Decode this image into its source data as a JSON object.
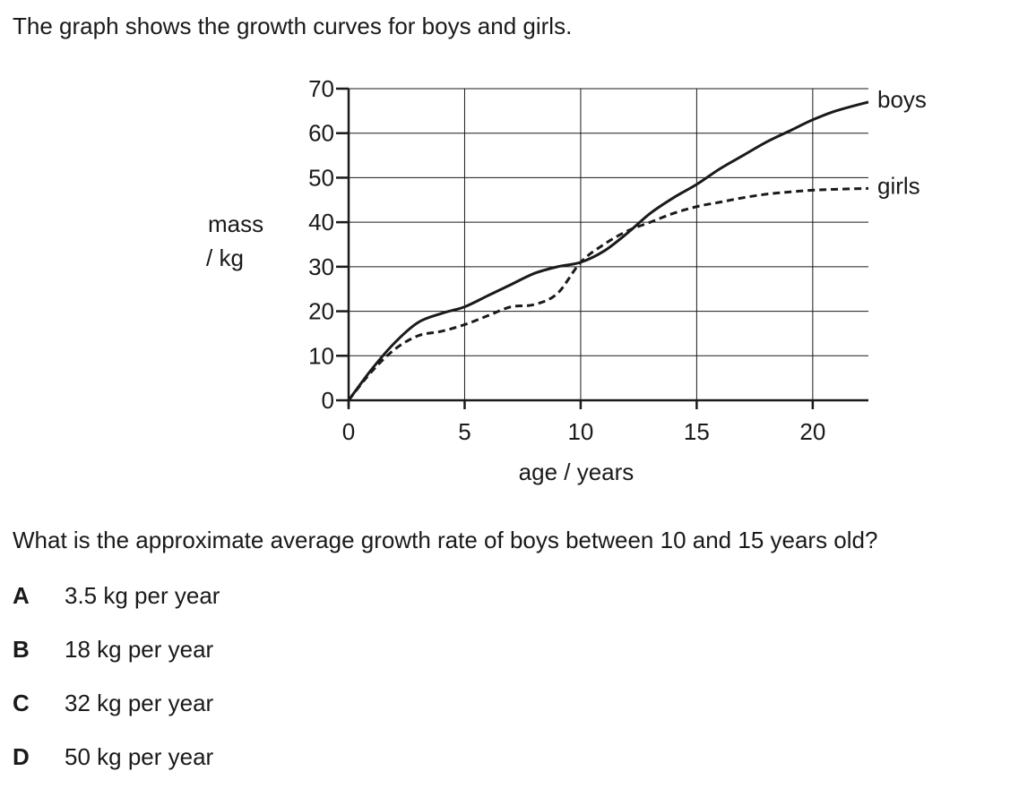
{
  "intro_text": "The graph shows the growth curves for boys and girls.",
  "question_text": "What is the approximate average growth rate of boys between 10 and 15 years old?",
  "options": [
    {
      "letter": "A",
      "text": "3.5 kg per year"
    },
    {
      "letter": "B",
      "text": "18 kg per year"
    },
    {
      "letter": "C",
      "text": "32 kg per year"
    },
    {
      "letter": "D",
      "text": "50 kg per year"
    }
  ],
  "chart_data": {
    "type": "line",
    "xlabel": "age / years",
    "ylabel": [
      "mass",
      "/ kg"
    ],
    "xlim": [
      0,
      22.4
    ],
    "ylim": [
      0,
      70
    ],
    "xticks": [
      0,
      5,
      10,
      15,
      20
    ],
    "yticks": [
      0,
      10,
      20,
      30,
      40,
      50,
      60,
      70
    ],
    "grid": true,
    "series": [
      {
        "name": "boys",
        "style": "solid",
        "color": "#1a1a1a",
        "x": [
          0,
          1,
          2,
          3,
          4,
          5,
          6,
          7,
          8,
          9,
          10,
          11,
          12,
          13,
          14,
          15,
          16,
          17,
          18,
          19,
          20,
          21,
          22.4
        ],
        "y": [
          0,
          7,
          13,
          17.5,
          19.5,
          21,
          23.5,
          26,
          28.5,
          30,
          31,
          33.5,
          37.5,
          42,
          45.5,
          48.5,
          52,
          55,
          58,
          60.5,
          63,
          65,
          67
        ]
      },
      {
        "name": "girls",
        "style": "dashed",
        "color": "#1a1a1a",
        "x": [
          0,
          1,
          2,
          3,
          4,
          5,
          6,
          7,
          8,
          9,
          10,
          11,
          12,
          13,
          14,
          15,
          16,
          17,
          18,
          19,
          20,
          21,
          22.4
        ],
        "y": [
          0,
          6.5,
          11.5,
          14.5,
          15.5,
          17,
          19,
          21,
          21.5,
          24,
          31,
          35,
          38,
          40,
          42,
          43.5,
          44.5,
          45.5,
          46.3,
          46.8,
          47.2,
          47.4,
          47.6
        ]
      }
    ]
  }
}
